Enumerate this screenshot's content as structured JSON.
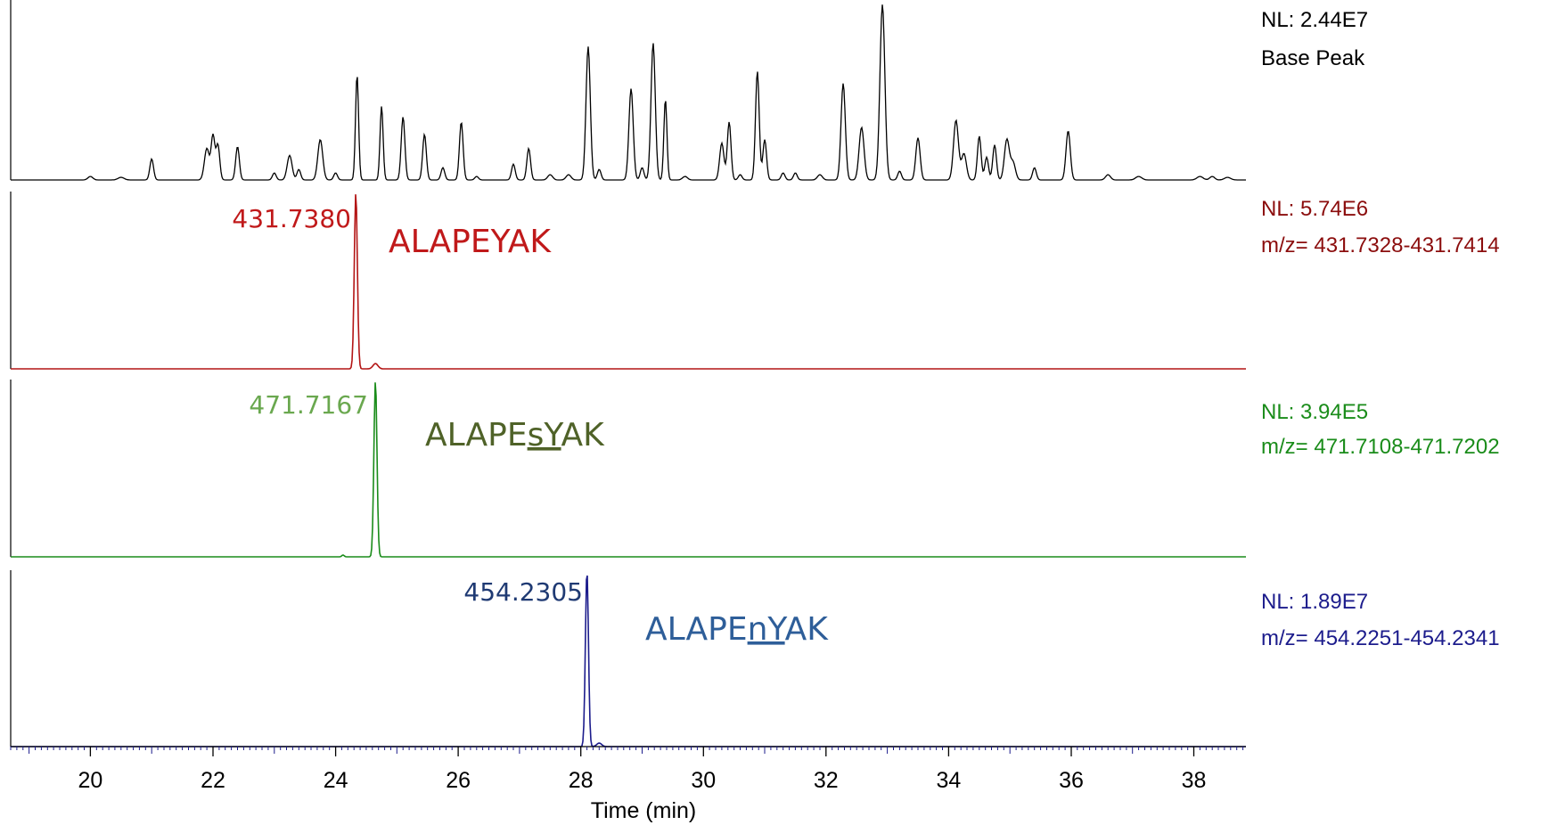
{
  "chart_data": {
    "type": "line",
    "xlabel": "Time (min)",
    "xlim": [
      18.7,
      38.85
    ],
    "xticks": [
      20,
      22,
      24,
      26,
      28,
      30,
      32,
      34,
      36,
      38
    ],
    "xtick_labels": [
      "20",
      "22",
      "24",
      "26",
      "28",
      "30",
      "32",
      "34",
      "36",
      "38"
    ],
    "panels": [
      {
        "id": "base",
        "color": "#000000",
        "nl_text": "NL: 2.44E7",
        "sub_text": "Base Peak",
        "baseline": 0.0,
        "peaks": [
          [
            20.0,
            0.02,
            0.04
          ],
          [
            20.5,
            0.015,
            0.05
          ],
          [
            21.0,
            0.12,
            0.03
          ],
          [
            21.9,
            0.18,
            0.04
          ],
          [
            22.0,
            0.25,
            0.03
          ],
          [
            22.08,
            0.2,
            0.03
          ],
          [
            22.4,
            0.19,
            0.03
          ],
          [
            23.0,
            0.04,
            0.03
          ],
          [
            23.25,
            0.14,
            0.04
          ],
          [
            23.4,
            0.06,
            0.03
          ],
          [
            23.75,
            0.23,
            0.04
          ],
          [
            24.0,
            0.04,
            0.03
          ],
          [
            24.35,
            0.6,
            0.025
          ],
          [
            24.75,
            0.42,
            0.025
          ],
          [
            25.1,
            0.36,
            0.03
          ],
          [
            25.45,
            0.26,
            0.03
          ],
          [
            25.75,
            0.07,
            0.03
          ],
          [
            26.05,
            0.33,
            0.03
          ],
          [
            26.3,
            0.02,
            0.03
          ],
          [
            26.9,
            0.09,
            0.03
          ],
          [
            27.15,
            0.18,
            0.03
          ],
          [
            27.5,
            0.03,
            0.04
          ],
          [
            27.8,
            0.03,
            0.04
          ],
          [
            28.12,
            0.76,
            0.035
          ],
          [
            28.3,
            0.06,
            0.03
          ],
          [
            28.82,
            0.52,
            0.035
          ],
          [
            29.0,
            0.07,
            0.03
          ],
          [
            29.18,
            0.78,
            0.035
          ],
          [
            29.38,
            0.46,
            0.025
          ],
          [
            29.7,
            0.02,
            0.04
          ],
          [
            30.3,
            0.21,
            0.035
          ],
          [
            30.42,
            0.33,
            0.03
          ],
          [
            30.6,
            0.03,
            0.03
          ],
          [
            30.88,
            0.62,
            0.03
          ],
          [
            31.0,
            0.23,
            0.03
          ],
          [
            31.3,
            0.04,
            0.03
          ],
          [
            31.5,
            0.04,
            0.03
          ],
          [
            31.9,
            0.03,
            0.04
          ],
          [
            32.28,
            0.55,
            0.035
          ],
          [
            32.58,
            0.3,
            0.04
          ],
          [
            32.92,
            1.0,
            0.04
          ],
          [
            33.2,
            0.05,
            0.03
          ],
          [
            33.5,
            0.24,
            0.035
          ],
          [
            34.12,
            0.34,
            0.04
          ],
          [
            34.25,
            0.15,
            0.04
          ],
          [
            34.5,
            0.25,
            0.03
          ],
          [
            34.62,
            0.13,
            0.03
          ],
          [
            34.75,
            0.2,
            0.03
          ],
          [
            34.95,
            0.23,
            0.04
          ],
          [
            35.05,
            0.1,
            0.04
          ],
          [
            35.4,
            0.07,
            0.03
          ],
          [
            35.95,
            0.28,
            0.035
          ],
          [
            36.6,
            0.03,
            0.04
          ],
          [
            37.1,
            0.02,
            0.05
          ],
          [
            38.1,
            0.02,
            0.05
          ],
          [
            38.3,
            0.02,
            0.04
          ],
          [
            38.55,
            0.015,
            0.05
          ]
        ]
      },
      {
        "id": "alapeyak",
        "color": "#b31515",
        "nl_color": "#8b0d0d",
        "nl_text": "NL: 5.74E6",
        "sub_text": "m/z= 431.7328-431.7414",
        "mz_label": "431.7380",
        "mz_color": "#c0191a",
        "peptide_parts": [
          "ALAPEYAK",
          "",
          ""
        ],
        "peptide_color": "#c0191a",
        "baseline": 0.0,
        "peaks": [
          [
            24.33,
            1.0,
            0.025
          ],
          [
            24.65,
            0.03,
            0.04
          ]
        ]
      },
      {
        "id": "alapesyak",
        "color": "#1a8c1a",
        "nl_color": "#1a8c1a",
        "nl_text": "NL: 3.94E5",
        "sub_text": "m/z= 471.7108-471.7202",
        "mz_label": "471.7167",
        "mz_color": "#6aa84f",
        "peptide_parts": [
          "ALAPE",
          "sY",
          "AK"
        ],
        "peptide_color": "#4f6228",
        "baseline": 0.0,
        "peaks": [
          [
            24.65,
            1.0,
            0.025
          ],
          [
            24.12,
            0.01,
            0.02
          ]
        ]
      },
      {
        "id": "alapenyak",
        "color": "#1c1c8c",
        "nl_color": "#1c1c8c",
        "nl_text": "NL: 1.89E7",
        "sub_text": "m/z= 454.2251-454.2341",
        "mz_label": "454.2305",
        "mz_color": "#1f3a73",
        "peptide_parts": [
          "ALAPE",
          "nY",
          "AK"
        ],
        "peptide_color": "#2e5e99",
        "baseline": 0.0,
        "peaks": [
          [
            28.1,
            1.0,
            0.025
          ],
          [
            28.3,
            0.02,
            0.04
          ]
        ]
      }
    ]
  }
}
